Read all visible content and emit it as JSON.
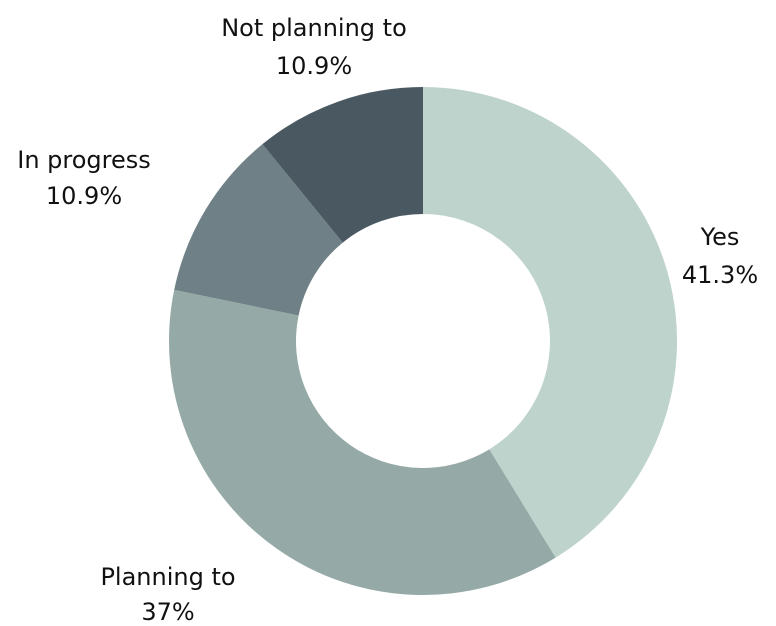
{
  "chart_data": {
    "type": "pie",
    "style": "donut",
    "slices": [
      {
        "label": "Yes",
        "value_label": "41.3%",
        "value": 41.3,
        "color": "#bdd3cb"
      },
      {
        "label": "Planning to",
        "value_label": "37%",
        "value": 37.0,
        "color": "#95aaa7"
      },
      {
        "label": "In progress",
        "value_label": "10.9%",
        "value": 10.9,
        "color": "#6f8186"
      },
      {
        "label": "Not planning to",
        "value_label": "10.9%",
        "value": 10.9,
        "color": "#4a5961"
      }
    ]
  }
}
